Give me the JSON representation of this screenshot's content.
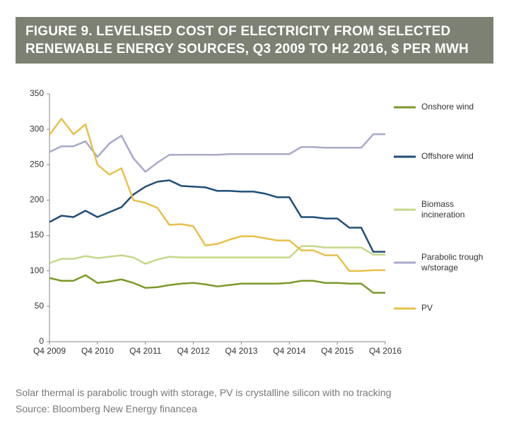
{
  "chart_data": {
    "type": "line",
    "title": "FIGURE 9. LEVELISED COST OF ELECTRICITY FROM SELECTED RENEWABLE ENERGY SOURCES, Q3 2009 TO H2 2016, $ PER MWH",
    "note": "Solar thermal is parabolic trough with storage, PV is crystalline silicon with no tracking",
    "source": "Source: Bloomberg New Energy financea",
    "categories": [
      "Q4 2009",
      null,
      null,
      null,
      "Q4 2010",
      null,
      null,
      null,
      "Q4 2011",
      null,
      null,
      null,
      "Q4 2012",
      null,
      null,
      null,
      "Q4 2013",
      null,
      null,
      null,
      "Q4 2014",
      null,
      null,
      null,
      "Q4 2015",
      null,
      null,
      null,
      "Q4 2016"
    ],
    "ylim": [
      0,
      350
    ],
    "yticks": [
      0,
      50,
      100,
      150,
      200,
      250,
      300,
      350
    ],
    "grid": false,
    "legend": "right",
    "series": [
      {
        "name": "Onshore wind",
        "color": "#7a9a2a",
        "values": [
          90,
          86,
          86,
          94,
          83,
          85,
          88,
          83,
          76,
          77,
          80,
          82,
          83,
          81,
          78,
          80,
          82,
          82,
          82,
          82,
          83,
          86,
          86,
          83,
          83,
          82,
          82,
          69,
          69
        ]
      },
      {
        "name": "Offshore wind",
        "color": "#1f4e79",
        "values": [
          169,
          178,
          176,
          185,
          176,
          183,
          190,
          208,
          219,
          226,
          228,
          220,
          219,
          218,
          213,
          213,
          212,
          212,
          209,
          204,
          204,
          176,
          176,
          174,
          174,
          161,
          161,
          127,
          127
        ]
      },
      {
        "name": "Biomass incineration",
        "color": "#c5d88a",
        "values": [
          111,
          117,
          117,
          121,
          118,
          120,
          122,
          119,
          110,
          116,
          120,
          119,
          119,
          119,
          119,
          119,
          119,
          119,
          119,
          119,
          119,
          135,
          135,
          133,
          133,
          133,
          133,
          123,
          123
        ]
      },
      {
        "name": "Parabolic trough w/storage",
        "color": "#a9a9cc",
        "values": [
          268,
          276,
          276,
          283,
          261,
          280,
          291,
          259,
          240,
          253,
          264,
          264,
          264,
          264,
          264,
          265,
          265,
          265,
          265,
          265,
          265,
          275,
          275,
          274,
          274,
          274,
          274,
          293,
          293
        ]
      },
      {
        "name": "PV",
        "color": "#e8c04a",
        "values": [
          292,
          315,
          293,
          307,
          250,
          236,
          245,
          200,
          196,
          189,
          165,
          166,
          163,
          136,
          138,
          144,
          149,
          149,
          146,
          143,
          143,
          129,
          129,
          122,
          122,
          100,
          100,
          101,
          101
        ]
      }
    ]
  }
}
